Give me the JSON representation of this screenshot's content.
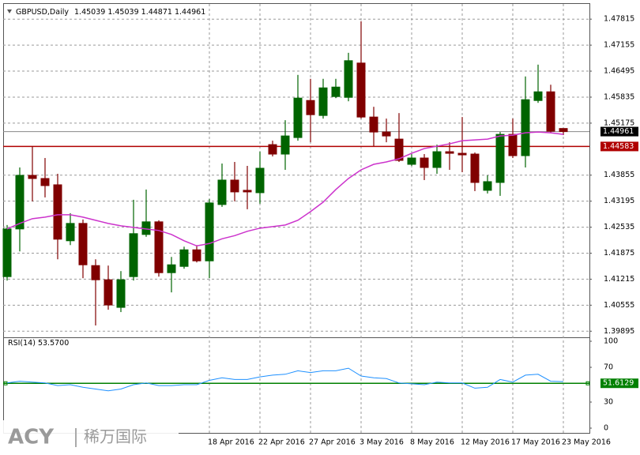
{
  "chart_data": [
    {
      "type": "candlestick",
      "title": "GBPUSD,Daily",
      "categories": [
        null,
        null,
        null,
        null,
        null,
        null,
        null,
        null,
        null,
        null,
        null,
        null,
        null,
        null,
        null,
        null,
        "18 Apr 2016",
        null,
        null,
        null,
        "22 Apr 2016",
        null,
        null,
        null,
        "27 Apr 2016",
        null,
        null,
        null,
        "3 May 2016",
        null,
        null,
        null,
        "8 May 2016",
        null,
        null,
        null,
        "12 May 2016",
        null,
        null,
        null,
        "17 May 2016",
        null,
        null,
        null,
        "23 May 2016"
      ],
      "open": [
        1.4128,
        1.4249,
        1.4385,
        1.4377,
        1.4361,
        1.4219,
        1.4263,
        1.4156,
        1.412,
        1.405,
        1.4128,
        1.4235,
        1.4267,
        1.4138,
        1.4154,
        1.4196,
        1.4168,
        1.4311,
        1.4373,
        1.4347,
        1.4341,
        1.4463,
        1.4439,
        1.4481,
        1.4575,
        1.4537,
        1.4585,
        1.4583,
        1.467,
        1.4533,
        1.4495,
        1.4477,
        1.4413,
        1.4429,
        1.4405,
        1.4445,
        1.4441,
        1.4439,
        1.4347,
        1.4367,
        1.4489,
        1.4435,
        1.4575,
        1.4597,
        1.45039
      ],
      "high": [
        1.4259,
        1.4405,
        1.4459,
        1.4429,
        1.4389,
        1.4289,
        1.4273,
        1.4172,
        1.4156,
        1.4142,
        1.4323,
        1.4349,
        1.4271,
        1.4178,
        1.4204,
        1.4208,
        1.4325,
        1.4415,
        1.4419,
        1.4409,
        1.4445,
        1.4473,
        1.4525,
        1.464,
        1.463,
        1.463,
        1.463,
        1.4696,
        1.4776,
        1.4559,
        1.4529,
        1.4543,
        1.4439,
        1.4439,
        1.4463,
        1.4469,
        1.4533,
        1.4443,
        1.4385,
        1.4495,
        1.4529,
        1.4636,
        1.4666,
        1.4615,
        1.45039
      ],
      "low": [
        1.4118,
        1.4192,
        1.4319,
        1.4329,
        1.4172,
        1.4208,
        1.4124,
        1.4004,
        1.4044,
        1.4038,
        1.4118,
        1.4229,
        1.4128,
        1.4088,
        1.4148,
        1.4164,
        1.4124,
        1.4305,
        1.4319,
        1.4299,
        1.4313,
        1.4433,
        1.4399,
        1.4473,
        1.4469,
        1.4529,
        1.4581,
        1.4573,
        1.4529,
        1.4459,
        1.4469,
        1.4419,
        1.4409,
        1.4373,
        1.4389,
        1.4399,
        1.4393,
        1.4345,
        1.4339,
        1.4333,
        1.4429,
        1.4405,
        1.4569,
        1.4493,
        1.44871
      ],
      "close": [
        1.4249,
        1.4385,
        1.4377,
        1.4359,
        1.4223,
        1.4263,
        1.4158,
        1.412,
        1.4056,
        1.412,
        1.4237,
        1.4267,
        1.4138,
        1.4158,
        1.4196,
        1.4168,
        1.4315,
        1.4373,
        1.4343,
        1.4343,
        1.4403,
        1.4439,
        1.4485,
        1.4581,
        1.4539,
        1.4607,
        1.4609,
        1.4676,
        1.4533,
        1.4495,
        1.4485,
        1.4423,
        1.4429,
        1.4405,
        1.4445,
        1.4441,
        1.4437,
        1.4367,
        1.4369,
        1.4489,
        1.4435,
        1.4577,
        1.4597,
        1.4497,
        1.44961
      ],
      "up_color": "#006400",
      "down_color": "#800000",
      "ma": {
        "color": "#cc33cc",
        "values": [
          1.4249,
          1.4263,
          1.4275,
          1.4279,
          1.4285,
          1.4285,
          1.4279,
          1.4271,
          1.4263,
          1.4257,
          1.4253,
          1.4249,
          1.4245,
          1.4235,
          1.4219,
          1.4206,
          1.4212,
          1.4224,
          1.4232,
          1.4243,
          1.4251,
          1.4255,
          1.4259,
          1.4271,
          1.4293,
          1.4317,
          1.4349,
          1.4377,
          1.4399,
          1.4413,
          1.4419,
          1.4427,
          1.4441,
          1.4453,
          1.4459,
          1.4465,
          1.4473,
          1.4475,
          1.4477,
          1.4485,
          1.4487,
          1.4493,
          1.4495,
          1.4493,
          1.4489
        ]
      },
      "hline": {
        "value": 1.44583,
        "color": "#b00000"
      },
      "ylim": [
        1.3978,
        1.482
      ],
      "yticks": [
        1.39895,
        1.40555,
        1.41215,
        1.41875,
        1.42535,
        1.43195,
        1.43855,
        1.45175,
        1.45835,
        1.46495,
        1.47155,
        1.47815
      ],
      "grid": true
    },
    {
      "type": "line",
      "title": "RSI(14)",
      "current": {
        "value": 53.57,
        "label": "53.5700"
      },
      "color": "#1e90ff",
      "values": [
        52,
        54,
        53,
        52,
        49,
        50,
        47,
        45,
        43,
        45,
        50,
        52,
        49,
        49,
        50,
        50,
        55,
        58,
        56,
        56,
        59,
        61,
        62,
        66,
        64,
        66,
        66,
        69,
        60,
        58,
        57,
        52,
        51,
        50,
        53,
        52,
        52,
        46,
        47,
        56,
        53,
        61,
        62,
        54,
        53.57
      ],
      "level": 51.6129,
      "level_color": "#008000",
      "ylim": [
        0,
        100
      ],
      "yticks": [
        0,
        30,
        70,
        100
      ]
    }
  ],
  "watermark": {
    "brand": "ACY",
    "name": "稀万国际"
  }
}
